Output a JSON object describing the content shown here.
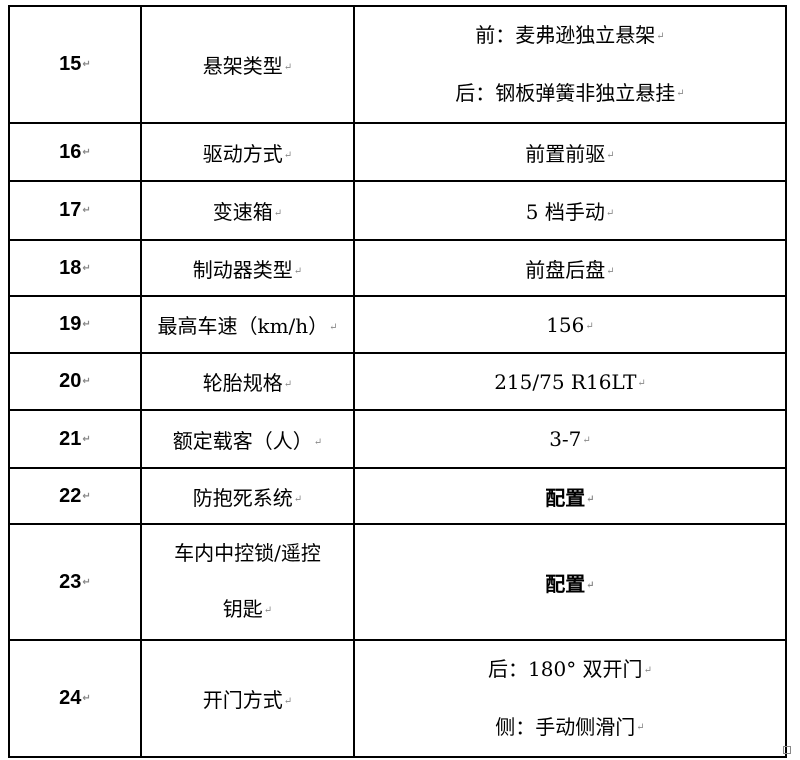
{
  "rows": [
    {
      "no": "15",
      "item": "悬架类型",
      "value": [
        "前：麦弗逊独立悬架",
        "后：钢板弹簧非独立悬挂"
      ]
    },
    {
      "no": "16",
      "item": "驱动方式",
      "value": [
        "前置前驱"
      ]
    },
    {
      "no": "17",
      "item": "变速箱",
      "value": [
        "5 档手动"
      ]
    },
    {
      "no": "18",
      "item": "制动器类型",
      "value": [
        "前盘后盘"
      ]
    },
    {
      "no": "19",
      "item": "最高车速（km/h）",
      "value": [
        "156"
      ]
    },
    {
      "no": "20",
      "item": "轮胎规格",
      "value": [
        "215/75 R16LT"
      ]
    },
    {
      "no": "21",
      "item": "额定载客（人）",
      "value": [
        "3-7"
      ]
    },
    {
      "no": "22",
      "item": "防抱死系统",
      "value": [
        "配置"
      ]
    },
    {
      "no": "23",
      "item": [
        "车内中控锁/遥控",
        "钥匙"
      ],
      "value": [
        "配置"
      ]
    },
    {
      "no": "24",
      "item": "开门方式",
      "value": [
        "后：180° 双开门",
        "侧：手动侧滑门"
      ]
    }
  ]
}
